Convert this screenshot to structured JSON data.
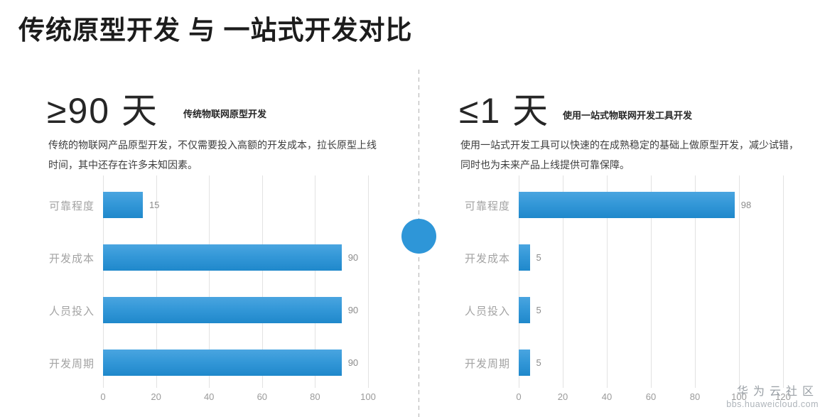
{
  "page": {
    "title": "传统原型开发 与 一站式开发对比"
  },
  "left_panel": {
    "headline": "≥90 天",
    "headline_label": "传统物联网原型开发",
    "description_line1": "传统的物联网产品原型开发，不仅需要投入高额的开发成本，拉长原型上线",
    "description_line2": "时间，其中还存在许多未知因素。"
  },
  "right_panel": {
    "headline": "≤1 天",
    "headline_label": "使用一站式物联网开发工具开发",
    "description_line1": "使用一站式开发工具可以快速的在成熟稳定的基础上做原型开发，减少试错，",
    "description_line2": "同时也为未来产品上线提供可靠保障。"
  },
  "chart_data": [
    {
      "type": "bar",
      "orientation": "horizontal",
      "title": "传统物联网原型开发",
      "categories": [
        "可靠程度",
        "开发成本",
        "人员投入",
        "开发周期"
      ],
      "values": [
        15,
        90,
        90,
        90
      ],
      "xticks": [
        0,
        20,
        40,
        60,
        80,
        100
      ],
      "xlim": [
        0,
        100
      ],
      "grid": true,
      "legend": "none"
    },
    {
      "type": "bar",
      "orientation": "horizontal",
      "title": "使用一站式物联网开发工具开发",
      "categories": [
        "可靠程度",
        "开发成本",
        "人员投入",
        "开发周期"
      ],
      "values": [
        98,
        5,
        5,
        5
      ],
      "xticks": [
        0,
        20,
        40,
        60,
        80,
        100,
        120
      ],
      "xlim": [
        0,
        120
      ],
      "grid": true,
      "legend": "none"
    }
  ],
  "watermark": {
    "line1": "华为云社区",
    "line2": "bbs.huaweicloud.com"
  },
  "colors": {
    "bar_top": "#4aa5e0",
    "bar_bottom": "#1f88cb",
    "accent_circle": "#2e96d8",
    "category_label": "#a3a3a3",
    "axis_label": "#9a9a9a",
    "gridline": "#e2e2e2",
    "divider": "#b0b0b0",
    "title_text": "#1c1c1c",
    "body_text": "#3d3d3d"
  }
}
